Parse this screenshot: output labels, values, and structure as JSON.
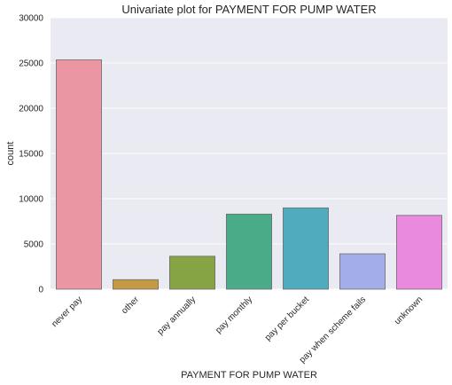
{
  "chart_data": {
    "type": "bar",
    "title": "Univariate plot for PAYMENT FOR PUMP WATER",
    "xlabel": "PAYMENT FOR PUMP WATER",
    "ylabel": "count",
    "ylim": [
      0,
      30000
    ],
    "yticks": [
      0,
      5000,
      10000,
      15000,
      20000,
      25000,
      30000
    ],
    "grid": true,
    "categories": [
      "never pay",
      "other",
      "pay annually",
      "pay monthly",
      "pay per bucket",
      "pay when scheme fails",
      "unknown"
    ],
    "values": [
      25348,
      1054,
      3642,
      8300,
      8985,
      3914,
      8157
    ],
    "colors": [
      "#ea96a3",
      "#c69a44",
      "#86a443",
      "#4aab89",
      "#4fabbd",
      "#a3aee9",
      "#e98ade"
    ]
  }
}
